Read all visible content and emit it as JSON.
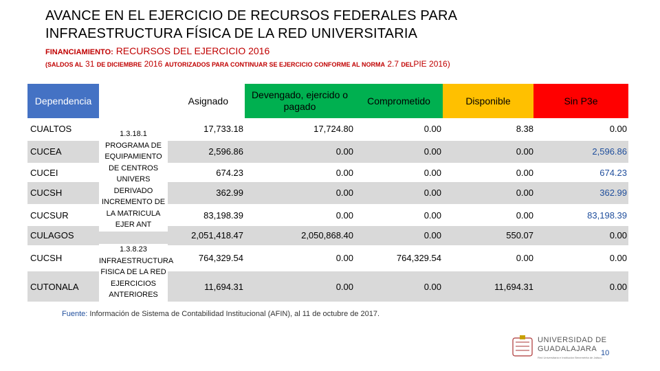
{
  "title": {
    "line1": "AVANCE EN EL EJERCICIO DE RECURSOS FEDERALES PARA",
    "line2": "INFRAESTRUCTURA FÍSICA DE LA RED UNIVERSITARIA"
  },
  "financing": {
    "label": "FINANCIAMIENTO:",
    "value": "RECURSOS DEL EJERCICIO 2016"
  },
  "saldos": {
    "open": "(SALDOS AL",
    "date": "31",
    "mid1": "DE DICIEMBRE",
    "year": "2016",
    "mid2": "AUTORIZADOS PARA CONTINUAR SE EJERCICIO CONFORME AL NORMA",
    "norma": "2.7",
    "mid3": "DEL",
    "pie": "PIE 2016)"
  },
  "headers": {
    "dependencia": "Dependencia",
    "asignado": "Asignado",
    "devengado": "Devengado, ejercido o pagado",
    "comprometido": "Comprometido",
    "disponible": "Disponible",
    "sinpe": "Sin P3e"
  },
  "programs": {
    "p1": "1.3.18.1 PROGRAMA DE EQUIPAMIENTO DE CENTROS UNIVERS DERIVADO INCREMENTO DE LA MATRICULA EJER ANT",
    "p2": "1.3.8.23 INFRAESTRUCTURA FISICA DE LA RED EJERCICIOS ANTERIORES"
  },
  "rows": [
    {
      "dep": "CUALTOS",
      "asignado": "17,733.18",
      "devengado": "17,724.80",
      "comprometido": "0.00",
      "disponible": "8.38",
      "sinpe": "0.00"
    },
    {
      "dep": "CUCEA",
      "asignado": "2,596.86",
      "devengado": "0.00",
      "comprometido": "0.00",
      "disponible": "0.00",
      "sinpe": "2,596.86"
    },
    {
      "dep": "CUCEI",
      "asignado": "674.23",
      "devengado": "0.00",
      "comprometido": "0.00",
      "disponible": "0.00",
      "sinpe": "674.23"
    },
    {
      "dep": "CUCSH",
      "asignado": "362.99",
      "devengado": "0.00",
      "comprometido": "0.00",
      "disponible": "0.00",
      "sinpe": "362.99"
    },
    {
      "dep": "CUCSUR",
      "asignado": "83,198.39",
      "devengado": "0.00",
      "comprometido": "0.00",
      "disponible": "0.00",
      "sinpe": "83,198.39"
    },
    {
      "dep": "CULAGOS",
      "asignado": "2,051,418.47",
      "devengado": "2,050,868.40",
      "comprometido": "0.00",
      "disponible": "550.07",
      "sinpe": "0.00"
    },
    {
      "dep": "CUCSH",
      "asignado": "764,329.54",
      "devengado": "0.00",
      "comprometido": "764,329.54",
      "disponible": "0.00",
      "sinpe": "0.00"
    },
    {
      "dep": "CUTONALA",
      "asignado": "11,694.31",
      "devengado": "0.00",
      "comprometido": "0.00",
      "disponible": "11,694.31",
      "sinpe": "0.00"
    }
  ],
  "footer": {
    "label": "Fuente:",
    "text": "Información de Sistema de Contabilidad Institucional (AFIN), al 11 de octubre de 2017."
  },
  "brand": {
    "line1": "UNIVERSIDAD DE",
    "line2": "GUADALAJARA",
    "sub": "Red Universitaria e Institución Benemérita de Jalisco"
  },
  "page_number": "10",
  "colors": {
    "dep_header": "#4472c4",
    "green": "#00b050",
    "orange": "#ffc000",
    "red": "#ff0000",
    "stripe": "#d9d9d9",
    "sinpe_blue": "#1f4e9c"
  }
}
